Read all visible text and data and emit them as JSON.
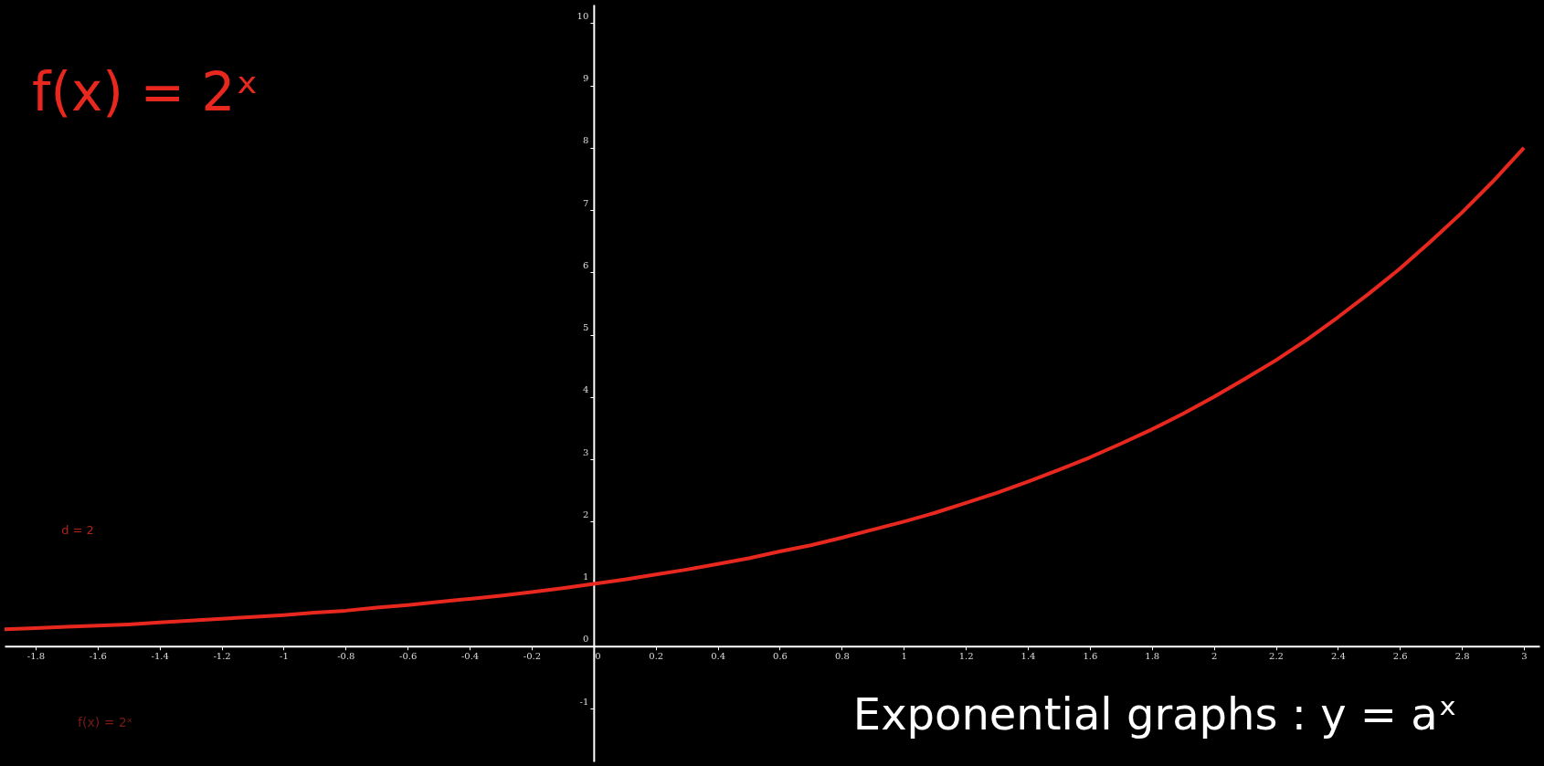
{
  "chart_data": {
    "type": "line",
    "title": "f(x) = 2ˣ",
    "x": [
      -1.9,
      -1.8,
      -1.7,
      -1.6,
      -1.5,
      -1.4,
      -1.3,
      -1.2,
      -1.1,
      -1.0,
      -0.9,
      -0.8,
      -0.7,
      -0.6,
      -0.5,
      -0.4,
      -0.3,
      -0.2,
      -0.1,
      0,
      0.1,
      0.2,
      0.3,
      0.4,
      0.5,
      0.6,
      0.7,
      0.8,
      0.9,
      1.0,
      1.1,
      1.2,
      1.3,
      1.4,
      1.5,
      1.6,
      1.7,
      1.8,
      1.9,
      2.0,
      2.1,
      2.2,
      2.3,
      2.4,
      2.5,
      2.6,
      2.7,
      2.8,
      2.9,
      3.0
    ],
    "series": [
      {
        "color": "#e8281e",
        "values": [
          0.27,
          0.29,
          0.31,
          0.33,
          0.35,
          0.38,
          0.41,
          0.44,
          0.47,
          0.5,
          0.54,
          0.57,
          0.62,
          0.66,
          0.71,
          0.76,
          0.81,
          0.87,
          0.93,
          1.0,
          1.07,
          1.15,
          1.23,
          1.32,
          1.41,
          1.52,
          1.62,
          1.74,
          1.87,
          2.0,
          2.14,
          2.3,
          2.46,
          2.64,
          2.83,
          3.03,
          3.25,
          3.48,
          3.73,
          4.0,
          4.29,
          4.59,
          4.92,
          5.28,
          5.66,
          6.06,
          6.5,
          6.96,
          7.46,
          8.0
        ]
      }
    ],
    "xlim": [
      -1.9,
      3.05
    ],
    "ylim": [
      -1.85,
      10.3
    ],
    "xticks": [
      -1.8,
      -1.6,
      -1.4,
      -1.2,
      -1,
      -0.8,
      -0.6,
      -0.4,
      -0.2,
      0,
      0.2,
      0.4,
      0.6,
      0.8,
      1,
      1.2,
      1.4,
      1.6,
      1.8,
      2,
      2.2,
      2.4,
      2.6,
      2.8,
      3
    ],
    "yticks": [
      -1,
      0,
      1,
      2,
      3,
      4,
      5,
      6,
      7,
      8,
      9,
      10
    ],
    "annotations": [
      "Exponential graphs : y = aˣ",
      "d = 2",
      "f(x) = 2ˣ"
    ],
    "grid": false,
    "marker": "none",
    "line_style": "solid"
  }
}
